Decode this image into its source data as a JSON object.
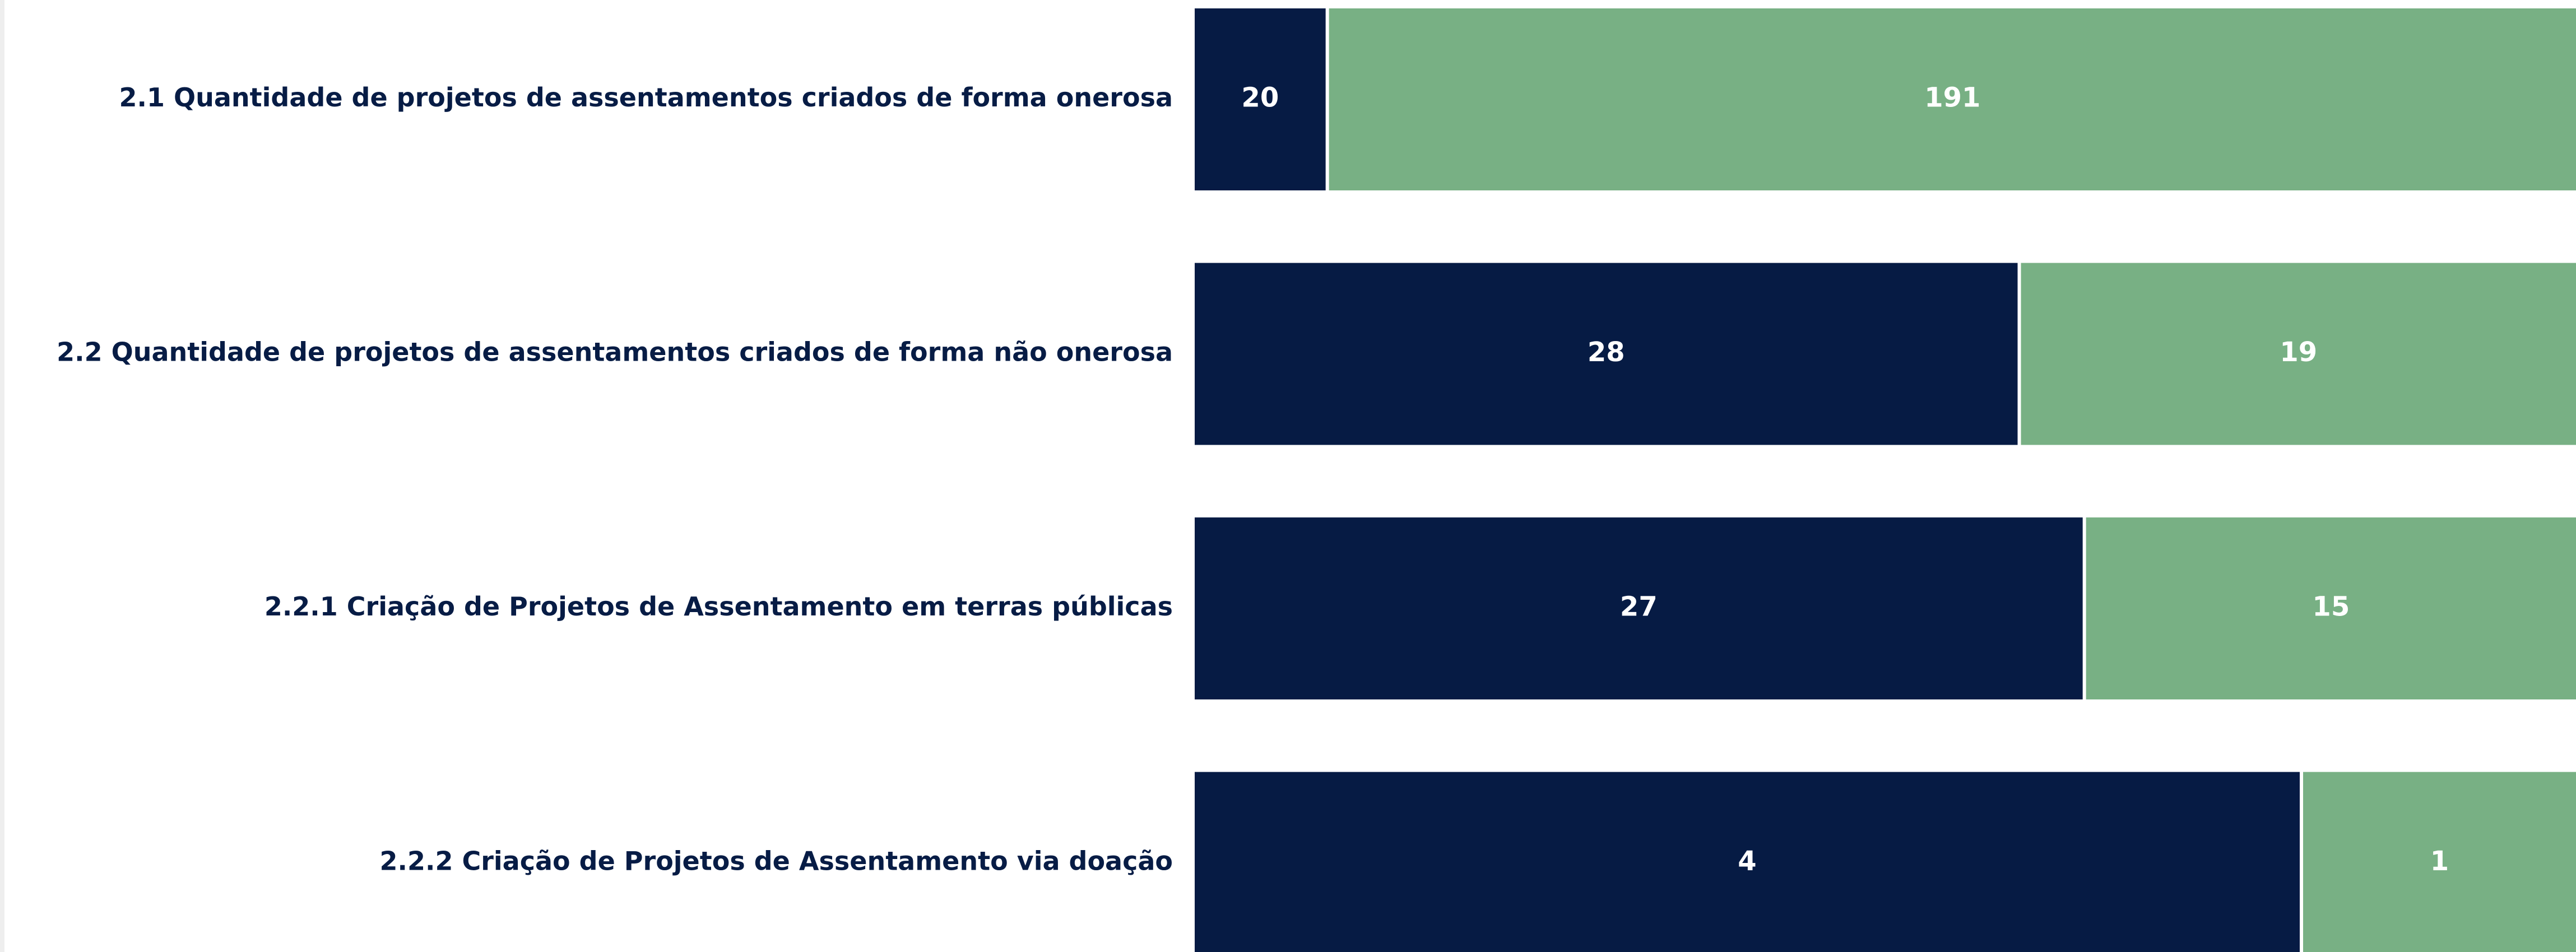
{
  "chart_data": {
    "type": "bar",
    "orientation": "horizontal",
    "stacked": true,
    "normalized": true,
    "categories": [
      "2.1 Quantidade de projetos de assentamentos criados de forma onerosa",
      "2.2 Quantidade de projetos de assentamentos criados de forma não onerosa",
      "2.2.1 Criação de Projetos de Assentamento em terras públicas",
      "2.2.2 Criação de Projetos de Assentamento via doação"
    ],
    "series": [
      {
        "color": "#061b44",
        "values": [
          20,
          28,
          27,
          4
        ]
      },
      {
        "color": "#78b084",
        "values": [
          191,
          19,
          15,
          1
        ]
      }
    ]
  }
}
